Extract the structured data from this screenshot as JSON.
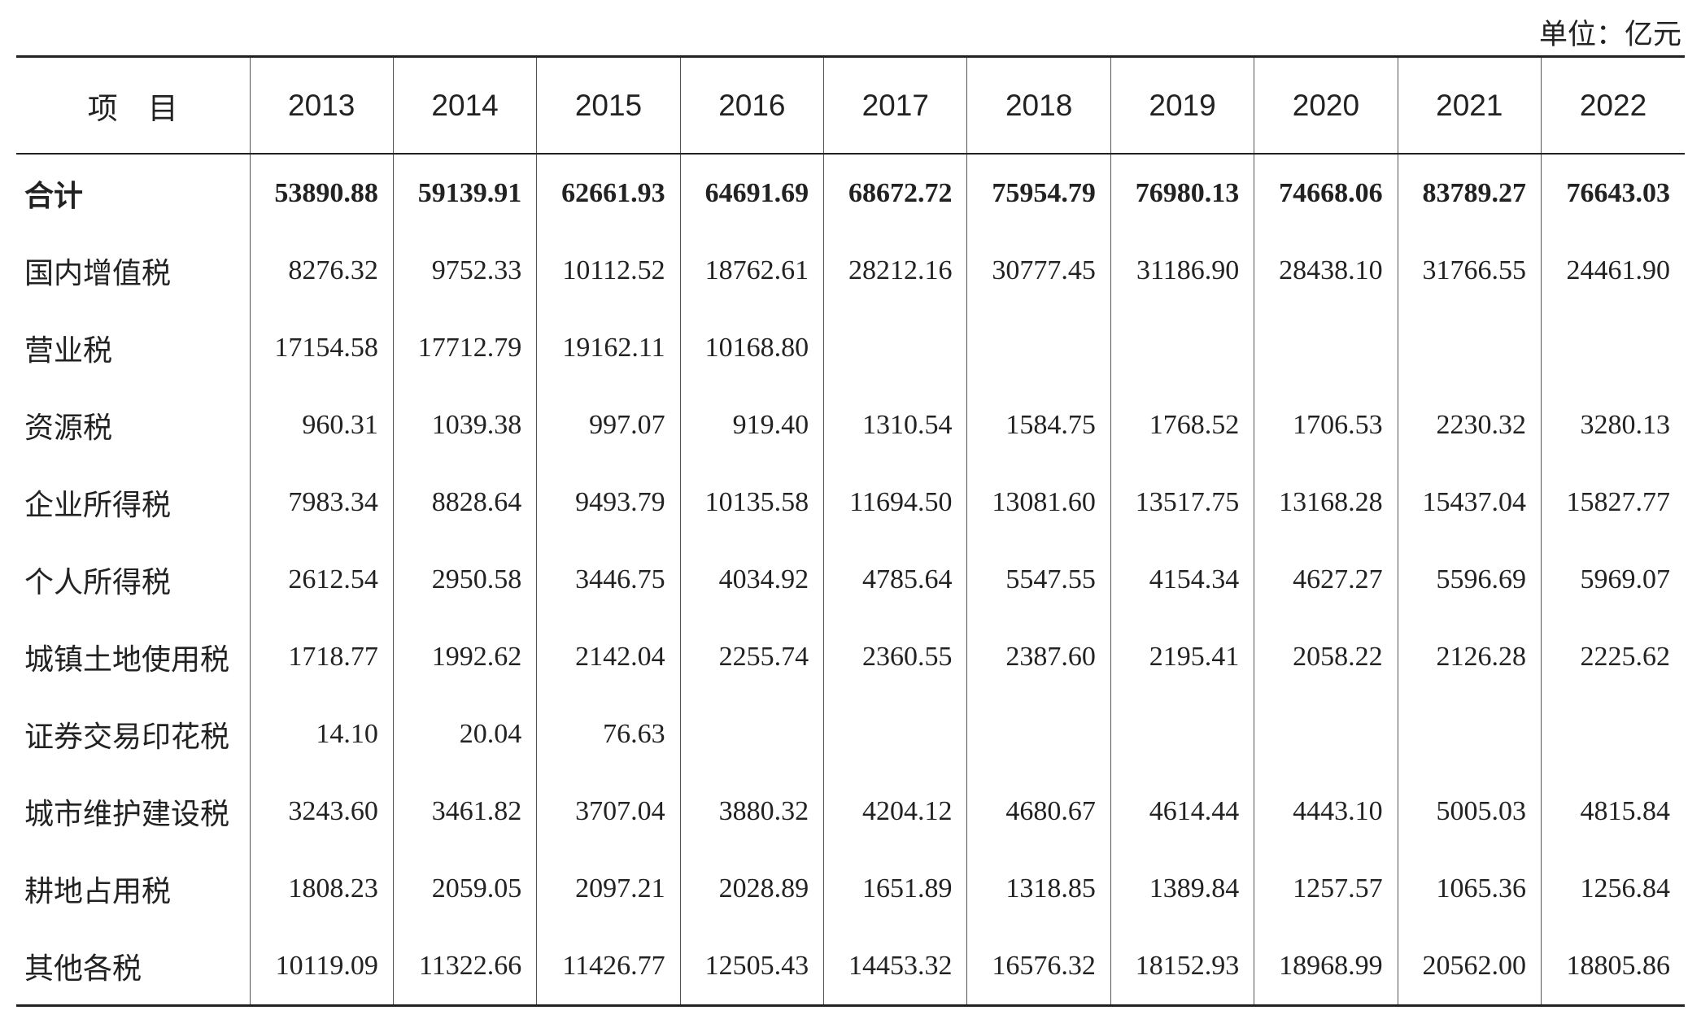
{
  "unit": "单位：亿元",
  "table": {
    "header": [
      "项　目",
      "2013",
      "2014",
      "2015",
      "2016",
      "2017",
      "2018",
      "2019",
      "2020",
      "2021",
      "2022"
    ],
    "rows": [
      [
        "合计",
        "53890.88",
        "59139.91",
        "62661.93",
        "64691.69",
        "68672.72",
        "75954.79",
        "76980.13",
        "74668.06",
        "83789.27",
        "76643.03"
      ],
      [
        "国内增值税",
        "8276.32",
        "9752.33",
        "10112.52",
        "18762.61",
        "28212.16",
        "30777.45",
        "31186.90",
        "28438.10",
        "31766.55",
        "24461.90"
      ],
      [
        "营业税",
        "17154.58",
        "17712.79",
        "19162.11",
        "10168.80",
        null,
        null,
        null,
        null,
        null,
        null
      ],
      [
        "资源税",
        "960.31",
        "1039.38",
        "997.07",
        "919.40",
        "1310.54",
        "1584.75",
        "1768.52",
        "1706.53",
        "2230.32",
        "3280.13"
      ],
      [
        "企业所得税",
        "7983.34",
        "8828.64",
        "9493.79",
        "10135.58",
        "11694.50",
        "13081.60",
        "13517.75",
        "13168.28",
        "15437.04",
        "15827.77"
      ],
      [
        "个人所得税",
        "2612.54",
        "2950.58",
        "3446.75",
        "4034.92",
        "4785.64",
        "5547.55",
        "4154.34",
        "4627.27",
        "5596.69",
        "5969.07"
      ],
      [
        "城镇土地使用税",
        "1718.77",
        "1992.62",
        "2142.04",
        "2255.74",
        "2360.55",
        "2387.60",
        "2195.41",
        "2058.22",
        "2126.28",
        "2225.62"
      ],
      [
        "证券交易印花税",
        "14.10",
        "20.04",
        "76.63",
        null,
        null,
        null,
        null,
        null,
        null,
        null
      ],
      [
        "城市维护建设税",
        "3243.60",
        "3461.82",
        "3707.04",
        "3880.32",
        "4204.12",
        "4680.67",
        "4614.44",
        "4443.10",
        "5005.03",
        "4815.84"
      ],
      [
        "耕地占用税",
        "1808.23",
        "2059.05",
        "2097.21",
        "2028.89",
        "1651.89",
        "1318.85",
        "1389.84",
        "1257.57",
        "1065.36",
        "1256.84"
      ],
      [
        "其他各税",
        "10119.09",
        "11322.66",
        "11426.77",
        "12505.43",
        "14453.32",
        "16576.32",
        "18152.93",
        "18968.99",
        "20562.00",
        "18805.86"
      ]
    ]
  }
}
